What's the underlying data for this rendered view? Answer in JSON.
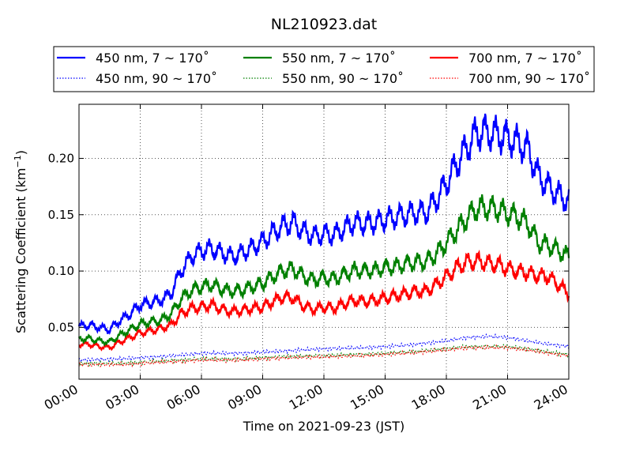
{
  "chart_data": {
    "type": "line",
    "title": "NL210923.dat",
    "xlabel": "Time on 2021-09-23 (JST)",
    "ylabel_main": "Scattering Coefficient (km",
    "ylabel_exp": "−1",
    "ylabel_close": ")",
    "xlim_hours": [
      0,
      24
    ],
    "ylim": [
      0.004,
      0.248
    ],
    "x_ticks": [
      "00:00",
      "03:00",
      "06:00",
      "09:00",
      "12:00",
      "15:00",
      "18:00",
      "21:00",
      "24:00"
    ],
    "y_ticks": [
      "0.05",
      "0.10",
      "0.15",
      "0.20"
    ],
    "y_tick_values": [
      0.05,
      0.1,
      0.15,
      0.2
    ],
    "grid": true,
    "legend_position": "top-center",
    "series": [
      {
        "name": "450 nm, 7 ~ 170˚",
        "color": "#0000ff",
        "style": "solid",
        "x": [
          0,
          0.5,
          1,
          1.5,
          2,
          2.5,
          3,
          3.5,
          4,
          4.5,
          5,
          5.5,
          6,
          6.5,
          7,
          7.5,
          8,
          8.5,
          9,
          9.5,
          10,
          10.5,
          11,
          11.5,
          12,
          12.5,
          13,
          13.5,
          14,
          14.5,
          15,
          15.5,
          16,
          16.5,
          17,
          17.5,
          18,
          18.5,
          19,
          19.5,
          20,
          20.5,
          21,
          21.5,
          22,
          22.5,
          23,
          23.5,
          24
        ],
        "values": [
          0.051,
          0.052,
          0.05,
          0.048,
          0.056,
          0.062,
          0.07,
          0.072,
          0.074,
          0.08,
          0.1,
          0.113,
          0.118,
          0.12,
          0.116,
          0.113,
          0.116,
          0.121,
          0.126,
          0.134,
          0.14,
          0.143,
          0.135,
          0.131,
          0.133,
          0.132,
          0.138,
          0.143,
          0.142,
          0.143,
          0.146,
          0.148,
          0.15,
          0.152,
          0.152,
          0.163,
          0.178,
          0.195,
          0.21,
          0.223,
          0.223,
          0.221,
          0.218,
          0.214,
          0.208,
          0.185,
          0.175,
          0.168,
          0.162
        ]
      },
      {
        "name": "450 nm, 90 ~ 170˚",
        "color": "#0000ff",
        "style": "dotted",
        "x": [
          0,
          2,
          4,
          6,
          8,
          10,
          12,
          14,
          16,
          18,
          19,
          20,
          21,
          22,
          23,
          24
        ],
        "values": [
          0.021,
          0.022,
          0.024,
          0.027,
          0.027,
          0.029,
          0.031,
          0.032,
          0.034,
          0.038,
          0.041,
          0.042,
          0.041,
          0.038,
          0.035,
          0.033
        ]
      },
      {
        "name": "550 nm, 7 ~ 170˚",
        "color": "#008000",
        "style": "solid",
        "x": [
          0,
          0.5,
          1,
          1.5,
          2,
          2.5,
          3,
          3.5,
          4,
          4.5,
          5,
          5.5,
          6,
          6.5,
          7,
          7.5,
          8,
          8.5,
          9,
          9.5,
          10,
          10.5,
          11,
          11.5,
          12,
          12.5,
          13,
          13.5,
          14,
          14.5,
          15,
          15.5,
          16,
          16.5,
          17,
          17.5,
          18,
          18.5,
          19,
          19.5,
          20,
          20.5,
          21,
          21.5,
          22,
          22.5,
          23,
          23.5,
          24
        ],
        "values": [
          0.04,
          0.04,
          0.038,
          0.037,
          0.043,
          0.048,
          0.053,
          0.055,
          0.056,
          0.062,
          0.075,
          0.083,
          0.086,
          0.088,
          0.084,
          0.082,
          0.083,
          0.086,
          0.089,
          0.095,
          0.1,
          0.102,
          0.095,
          0.092,
          0.094,
          0.093,
          0.097,
          0.101,
          0.1,
          0.101,
          0.103,
          0.104,
          0.106,
          0.108,
          0.108,
          0.115,
          0.125,
          0.136,
          0.147,
          0.156,
          0.156,
          0.155,
          0.151,
          0.148,
          0.142,
          0.125,
          0.123,
          0.118,
          0.113
        ]
      },
      {
        "name": "550 nm, 90 ~ 170˚",
        "color": "#008000",
        "style": "dotted",
        "x": [
          0,
          2,
          4,
          6,
          8,
          10,
          12,
          14,
          16,
          18,
          19,
          20,
          21,
          22,
          23,
          24
        ],
        "values": [
          0.018,
          0.018,
          0.02,
          0.022,
          0.022,
          0.024,
          0.025,
          0.026,
          0.028,
          0.031,
          0.033,
          0.033,
          0.033,
          0.031,
          0.028,
          0.026
        ]
      },
      {
        "name": "700 nm, 7 ~ 170˚",
        "color": "#ff0000",
        "style": "solid",
        "x": [
          0,
          0.5,
          1,
          1.5,
          2,
          2.5,
          3,
          3.5,
          4,
          4.5,
          5,
          5.5,
          6,
          6.5,
          7,
          7.5,
          8,
          8.5,
          9,
          9.5,
          10,
          10.5,
          11,
          11.5,
          12,
          12.5,
          13,
          13.5,
          14,
          14.5,
          15,
          15.5,
          16,
          16.5,
          17,
          17.5,
          18,
          18.5,
          19,
          19.5,
          20,
          20.5,
          21,
          21.5,
          22,
          22.5,
          23,
          23.5,
          24
        ],
        "values": [
          0.035,
          0.035,
          0.033,
          0.032,
          0.037,
          0.041,
          0.045,
          0.047,
          0.049,
          0.052,
          0.062,
          0.067,
          0.068,
          0.07,
          0.066,
          0.064,
          0.065,
          0.067,
          0.068,
          0.073,
          0.077,
          0.076,
          0.069,
          0.066,
          0.068,
          0.067,
          0.071,
          0.074,
          0.073,
          0.074,
          0.076,
          0.078,
          0.08,
          0.082,
          0.082,
          0.088,
          0.095,
          0.103,
          0.108,
          0.109,
          0.107,
          0.106,
          0.102,
          0.1,
          0.098,
          0.096,
          0.095,
          0.088,
          0.08
        ]
      },
      {
        "name": "700 nm, 90 ~ 170˚",
        "color": "#ff0000",
        "style": "dotted",
        "x": [
          0,
          2,
          4,
          6,
          8,
          10,
          12,
          14,
          16,
          18,
          19,
          20,
          21,
          22,
          23,
          24
        ],
        "values": [
          0.017,
          0.017,
          0.019,
          0.021,
          0.021,
          0.023,
          0.024,
          0.025,
          0.027,
          0.03,
          0.032,
          0.032,
          0.032,
          0.03,
          0.027,
          0.025
        ]
      }
    ]
  }
}
